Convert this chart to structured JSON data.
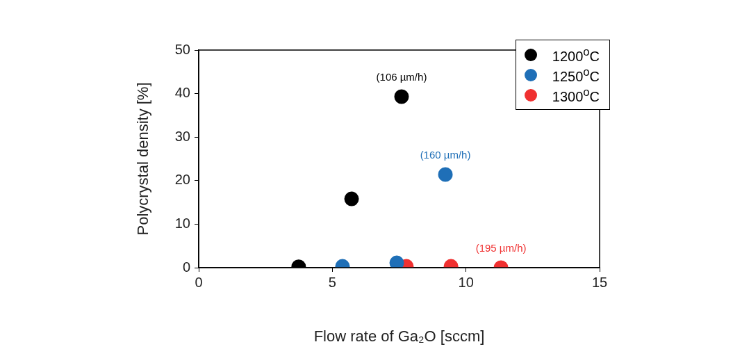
{
  "chart_data": {
    "type": "scatter",
    "xlabel": "Flow rate of Ga₂O [sccm]",
    "ylabel": "Polycrystal density [%]",
    "xlim": [
      0,
      15
    ],
    "xticks": [
      0,
      5,
      10,
      15
    ],
    "ylim": [
      0,
      50
    ],
    "yticks": [
      0,
      10,
      20,
      30,
      40,
      50
    ],
    "grid": false,
    "legend": "top right",
    "marker": "circle",
    "series": [
      {
        "name": "1200$^{o}$C",
        "color": "#000000",
        "x": [
          3.74,
          5.72,
          7.59
        ],
        "values": [
          0.2,
          15.8,
          39.3
        ]
      },
      {
        "name": "1250$^{o}$C",
        "color": "#1f6fb7",
        "x": [
          5.38,
          7.41,
          9.23
        ],
        "values": [
          0.3,
          1.1,
          21.4
        ]
      },
      {
        "name": "1300$^{o}$C",
        "color": "#f03030",
        "x": [
          7.77,
          9.44,
          11.31
        ],
        "values": [
          0.3,
          0.3,
          0
        ]
      }
    ],
    "annotations": [
      {
        "text": "(106 µm/h)",
        "x": 7.59,
        "y": 39.3
      },
      {
        "text": "(160 µm/h)",
        "x": 9.23,
        "y": 21.4
      },
      {
        "text": "(195 µm/h)",
        "x": 11.31,
        "y": 0
      }
    ]
  }
}
